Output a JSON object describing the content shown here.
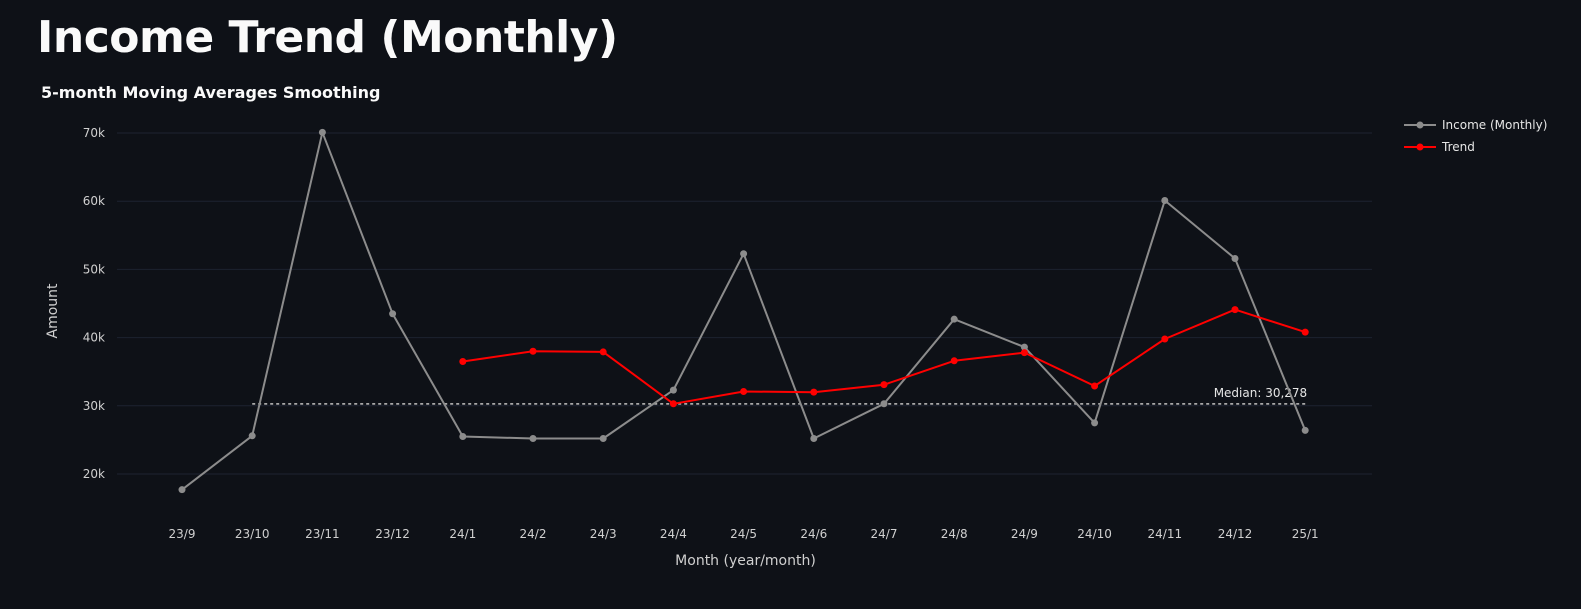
{
  "page": {
    "title": "Income Trend (Monthly)"
  },
  "chart_data": {
    "type": "line",
    "title": "5-month Moving Averages Smoothing",
    "xlabel": "Month (year/month)",
    "ylabel": "Amount",
    "categories": [
      "23/9",
      "23/10",
      "23/11",
      "23/12",
      "24/1",
      "24/2",
      "24/3",
      "24/4",
      "24/5",
      "24/6",
      "24/7",
      "24/8",
      "24/9",
      "24/10",
      "24/11",
      "24/12",
      "25/1"
    ],
    "ylim": [
      14000,
      72000
    ],
    "y_ticks": [
      20000,
      30000,
      40000,
      50000,
      60000,
      70000
    ],
    "y_tick_labels": [
      "20k",
      "30k",
      "40k",
      "50k",
      "60k",
      "70k"
    ],
    "grid": true,
    "legend_position": "top-right",
    "series": [
      {
        "name": "Income (Monthly)",
        "color": "#8c8c8c",
        "values": [
          17700,
          25600,
          70100,
          43500,
          25500,
          25200,
          25200,
          32300,
          52300,
          25200,
          30300,
          42700,
          38600,
          27500,
          60100,
          51600,
          26400
        ]
      },
      {
        "name": "Trend",
        "color": "#ff0000",
        "values": [
          null,
          null,
          null,
          null,
          36500,
          38000,
          37900,
          30300,
          32100,
          32000,
          33100,
          36600,
          37800,
          32900,
          39800,
          44100,
          40800
        ]
      }
    ],
    "annotations": [
      {
        "type": "hline",
        "value": 30278,
        "label": "Median: 30,278",
        "from_category": "23/10",
        "to_category": "25/1",
        "color": "#a8a8a8"
      }
    ]
  }
}
